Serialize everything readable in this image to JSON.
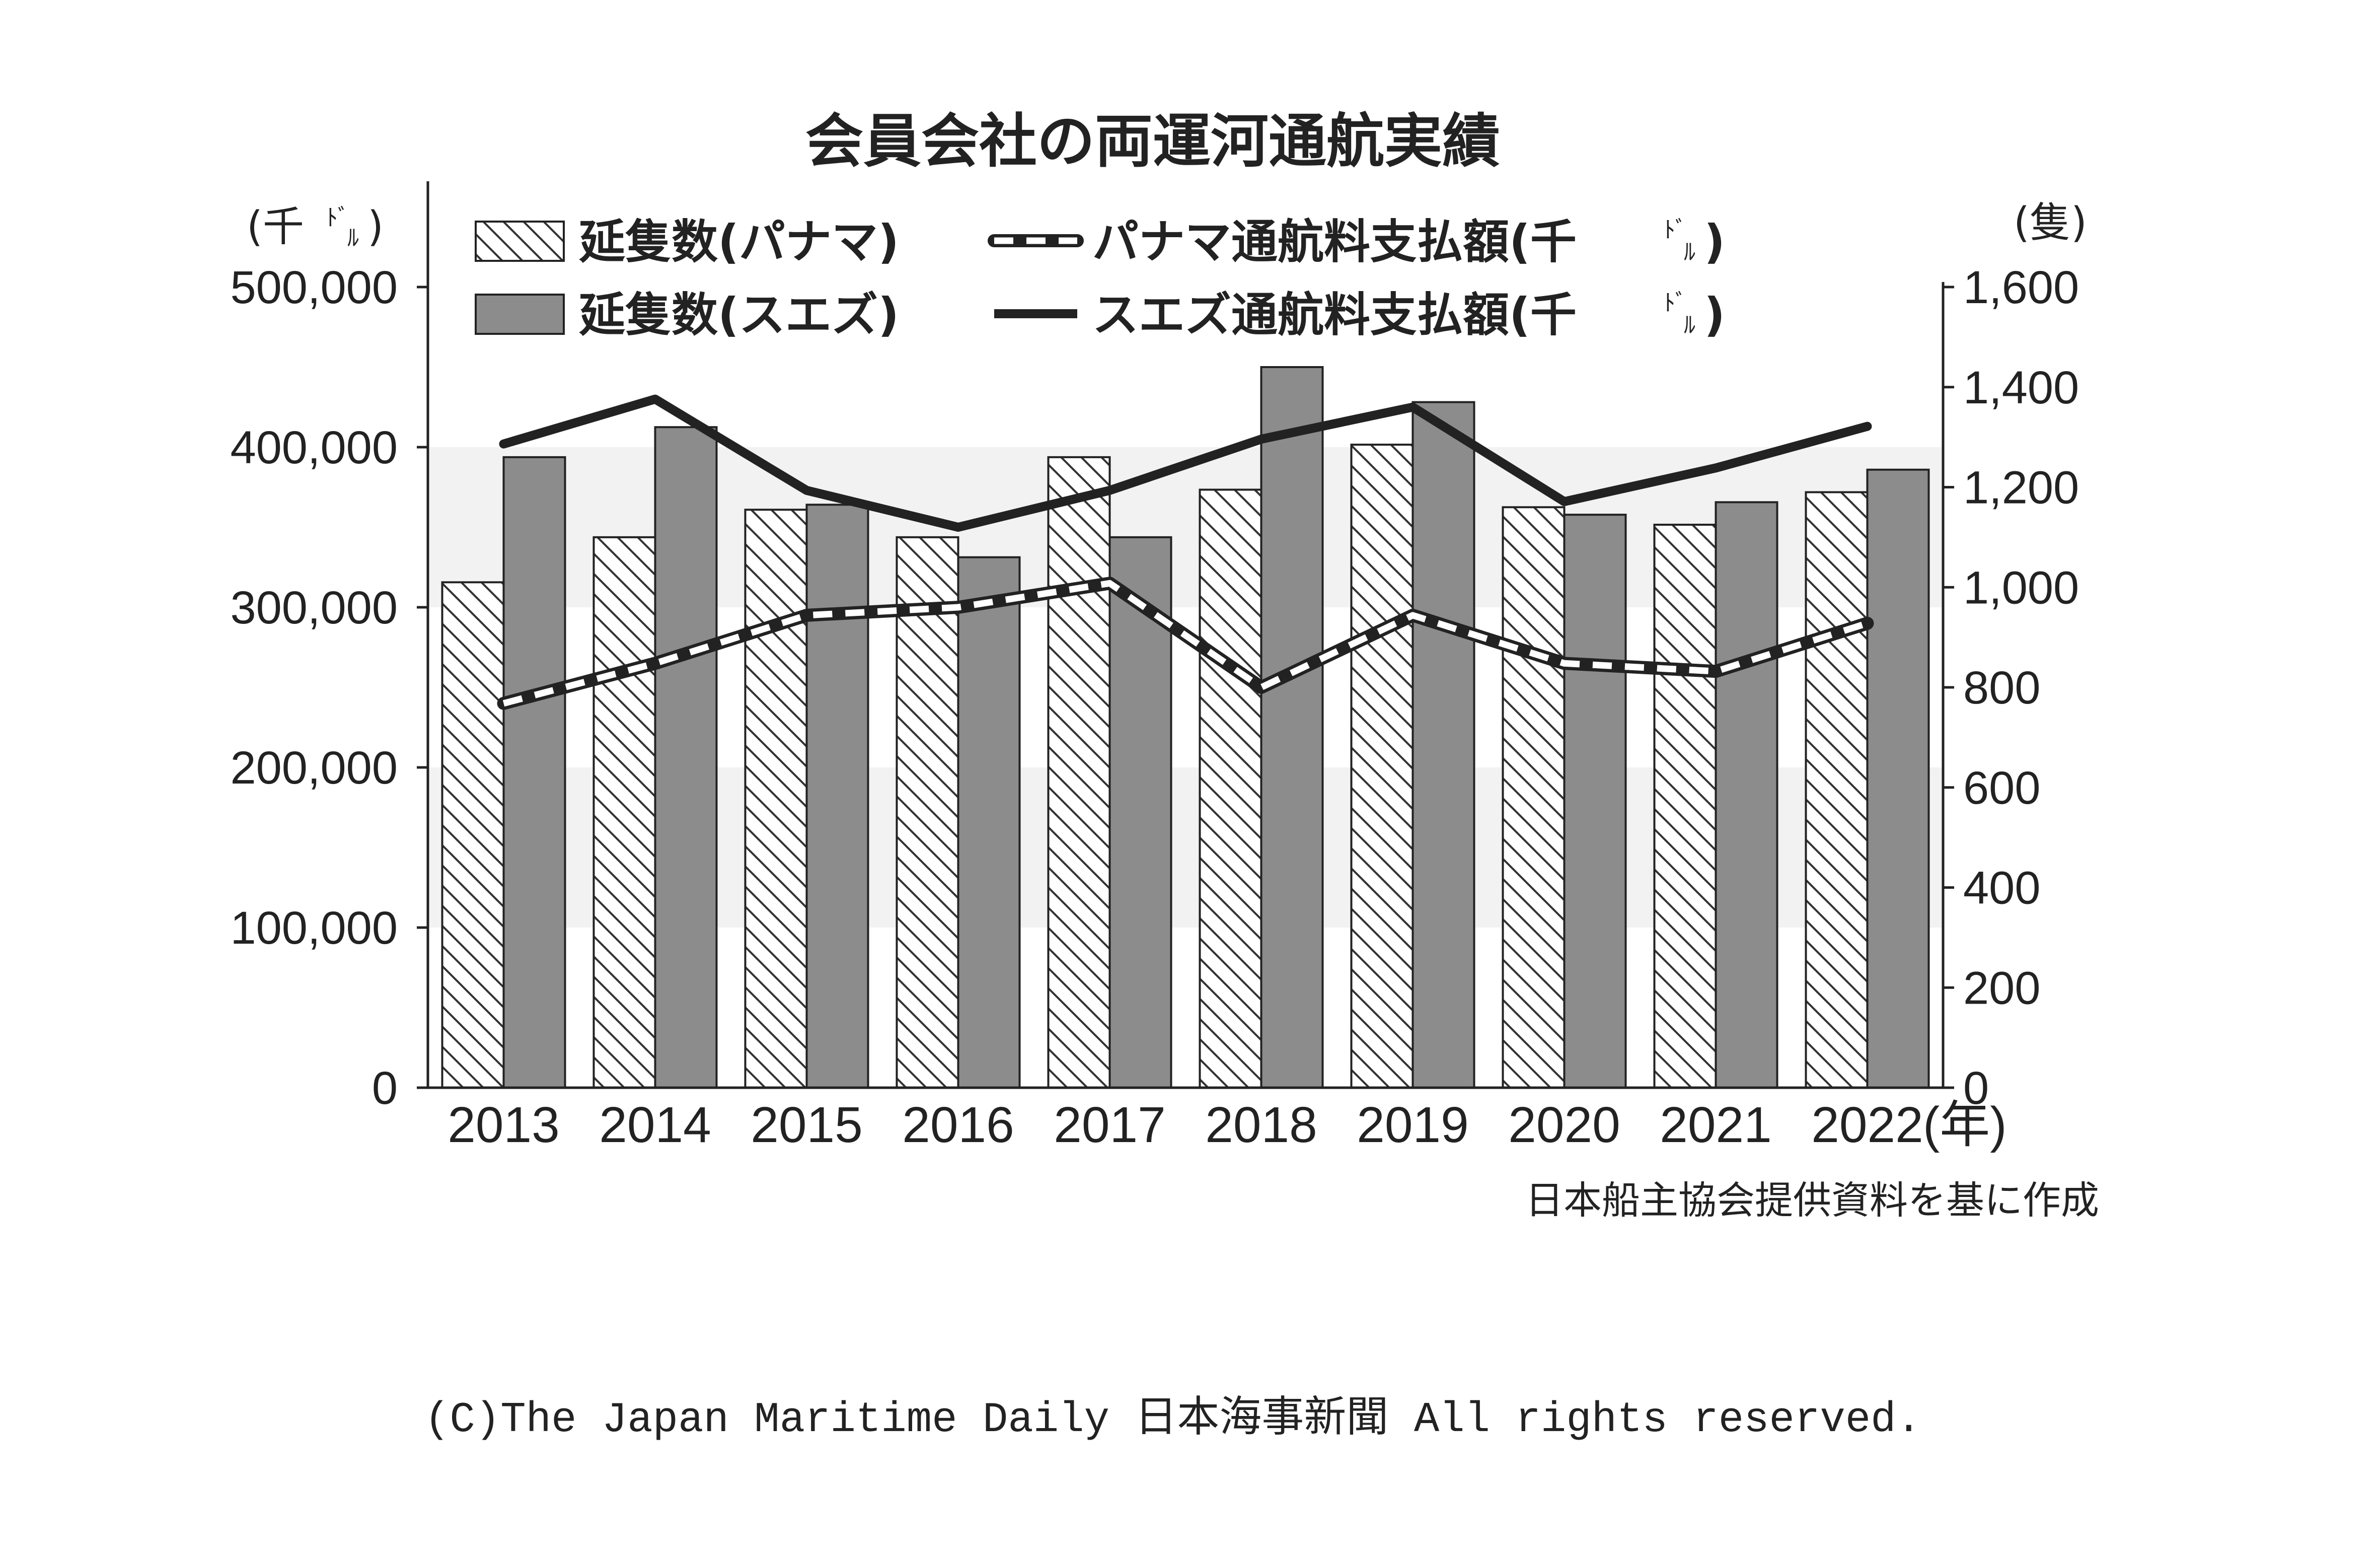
{
  "chart_data": {
    "type": "bar",
    "title": "会員会社の両運河通航実績",
    "categories": [
      "2013",
      "2014",
      "2015",
      "2016",
      "2017",
      "2018",
      "2019",
      "2020",
      "2021",
      "2022"
    ],
    "x_unit": "(年)",
    "left_axis": {
      "unit_main": "(千",
      "unit_sup": "ﾄﾞ",
      "unit_sub": "ﾙ",
      "unit_close": ")",
      "ylim": [
        0,
        500000
      ],
      "ticks": [
        "0",
        "100,000",
        "200,000",
        "300,000",
        "400,000",
        "500,000"
      ]
    },
    "right_axis": {
      "unit": "(隻)",
      "ylim": [
        0,
        1600
      ],
      "ticks": [
        "0",
        "200",
        "400",
        "600",
        "800",
        "1,000",
        "1,200",
        "1,400",
        "1,600"
      ]
    },
    "series": [
      {
        "name": "延隻数(パナマ)",
        "kind": "bar",
        "pattern": "hatched",
        "axis": "right",
        "values": [
          1010,
          1100,
          1155,
          1100,
          1260,
          1195,
          1285,
          1160,
          1125,
          1190
        ]
      },
      {
        "name": "延隻数(スエズ)",
        "kind": "bar",
        "pattern": "solid",
        "color": "#8c8c8c",
        "axis": "right",
        "values": [
          1260,
          1320,
          1165,
          1060,
          1100,
          1440,
          1370,
          1145,
          1170,
          1235
        ]
      },
      {
        "name": "パナマ通航料支払額(千ﾄﾞﾙ)",
        "kind": "line",
        "style": "dashed-outline",
        "axis": "left",
        "values": [
          240000,
          265000,
          295000,
          300000,
          315000,
          250000,
          295000,
          265000,
          260000,
          290000
        ]
      },
      {
        "name": "スエズ通航料支払額(千ﾄﾞﾙ)",
        "kind": "line",
        "style": "solid",
        "color": "#222222",
        "axis": "left",
        "values": [
          402000,
          430000,
          373000,
          350000,
          373000,
          405000,
          425000,
          366000,
          387000,
          413000
        ]
      }
    ],
    "legend": [
      {
        "label": "延隻数(パナマ)",
        "symbol": "hatched-bar"
      },
      {
        "label": "パナマ通航料支払額(千",
        "sup": "ﾄﾞ",
        "sub": "ﾙ",
        "close": ")",
        "symbol": "dashed-line"
      },
      {
        "label": "延隻数(スエズ)",
        "symbol": "solid-bar"
      },
      {
        "label": "スエズ通航料支払額(千",
        "sup": "ﾄﾞ",
        "sub": "ﾙ",
        "close": ")",
        "symbol": "solid-line"
      }
    ],
    "legend_position": "top-left"
  },
  "source_note": "日本船主協会提供資料を基に作成",
  "copyright": "(C)The Japan Maritime Daily 日本海事新聞 All rights reserved."
}
